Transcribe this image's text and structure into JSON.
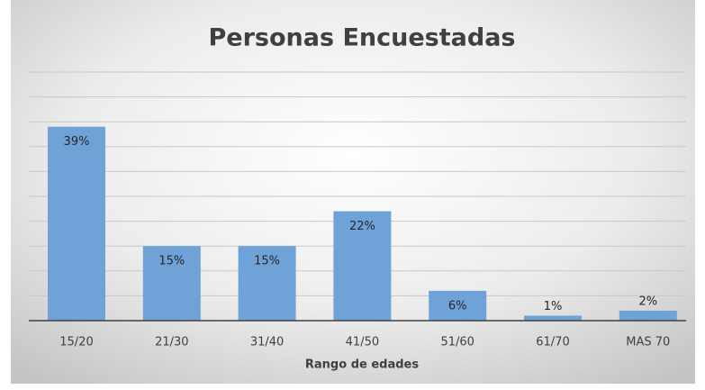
{
  "chart_data": {
    "type": "bar",
    "title": "Personas Encuestadas",
    "x_label": "Rango de edades",
    "categories": [
      "15/20",
      "21/30",
      "31/40",
      "41/50",
      "51/60",
      "61/70",
      "MAS 70"
    ],
    "values": [
      39,
      15,
      15,
      22,
      6,
      1,
      2
    ],
    "value_labels": [
      "39%",
      "15%",
      "15%",
      "22%",
      "6%",
      "1%",
      "2%"
    ],
    "color": "#6fa3d8",
    "ylim": [
      0,
      50
    ],
    "yticks": [
      0,
      5,
      10,
      15,
      20,
      25,
      30,
      35,
      40,
      45,
      50
    ],
    "grid": true
  }
}
